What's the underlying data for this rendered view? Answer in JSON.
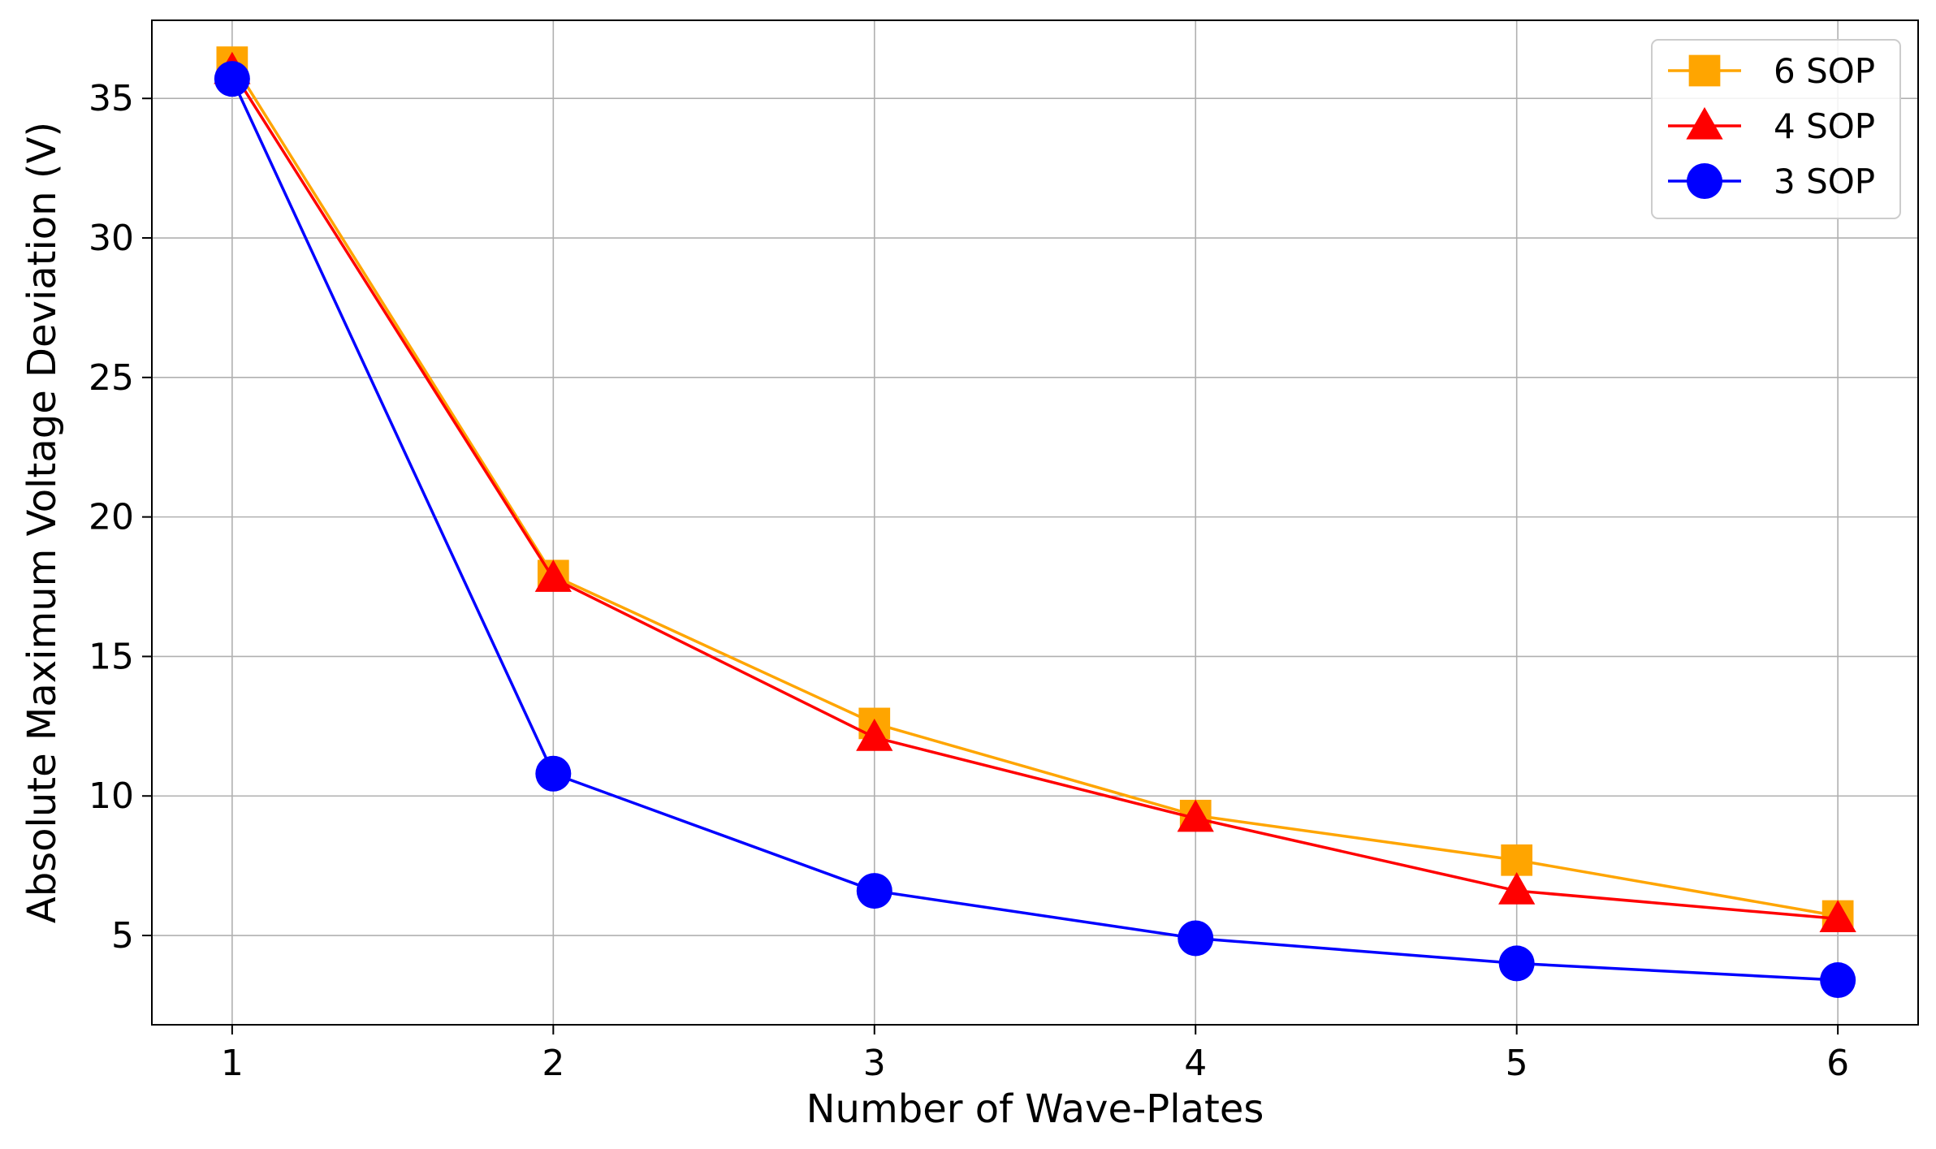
{
  "chart_data": {
    "type": "line",
    "title": "",
    "xlabel": "Number of Wave-Plates",
    "ylabel": "Absolute Maximum Voltage Deviation (V)",
    "x": [
      1,
      2,
      3,
      4,
      5,
      6
    ],
    "xlim": [
      0.75,
      6.25
    ],
    "ylim": [
      1.8,
      37.8
    ],
    "xticks": [
      1,
      2,
      3,
      4,
      5,
      6
    ],
    "xtick_labels": [
      "1",
      "2",
      "3",
      "4",
      "5",
      "6"
    ],
    "yticks": [
      5,
      10,
      15,
      20,
      25,
      30,
      35
    ],
    "ytick_labels": [
      "5",
      "10",
      "15",
      "20",
      "25",
      "30",
      "35"
    ],
    "grid": true,
    "legend_position": "top-right",
    "series": [
      {
        "name": "6 SOP",
        "color": "#ffa500",
        "marker": "square",
        "values": [
          36.3,
          17.9,
          12.6,
          9.3,
          7.7,
          5.7
        ]
      },
      {
        "name": "4 SOP",
        "color": "#ff0000",
        "marker": "triangle",
        "values": [
          36.0,
          17.8,
          12.1,
          9.2,
          6.6,
          5.6
        ]
      },
      {
        "name": "3 SOP",
        "color": "#0000ff",
        "marker": "circle",
        "values": [
          35.7,
          10.8,
          6.6,
          4.9,
          4.0,
          3.4
        ]
      }
    ]
  }
}
